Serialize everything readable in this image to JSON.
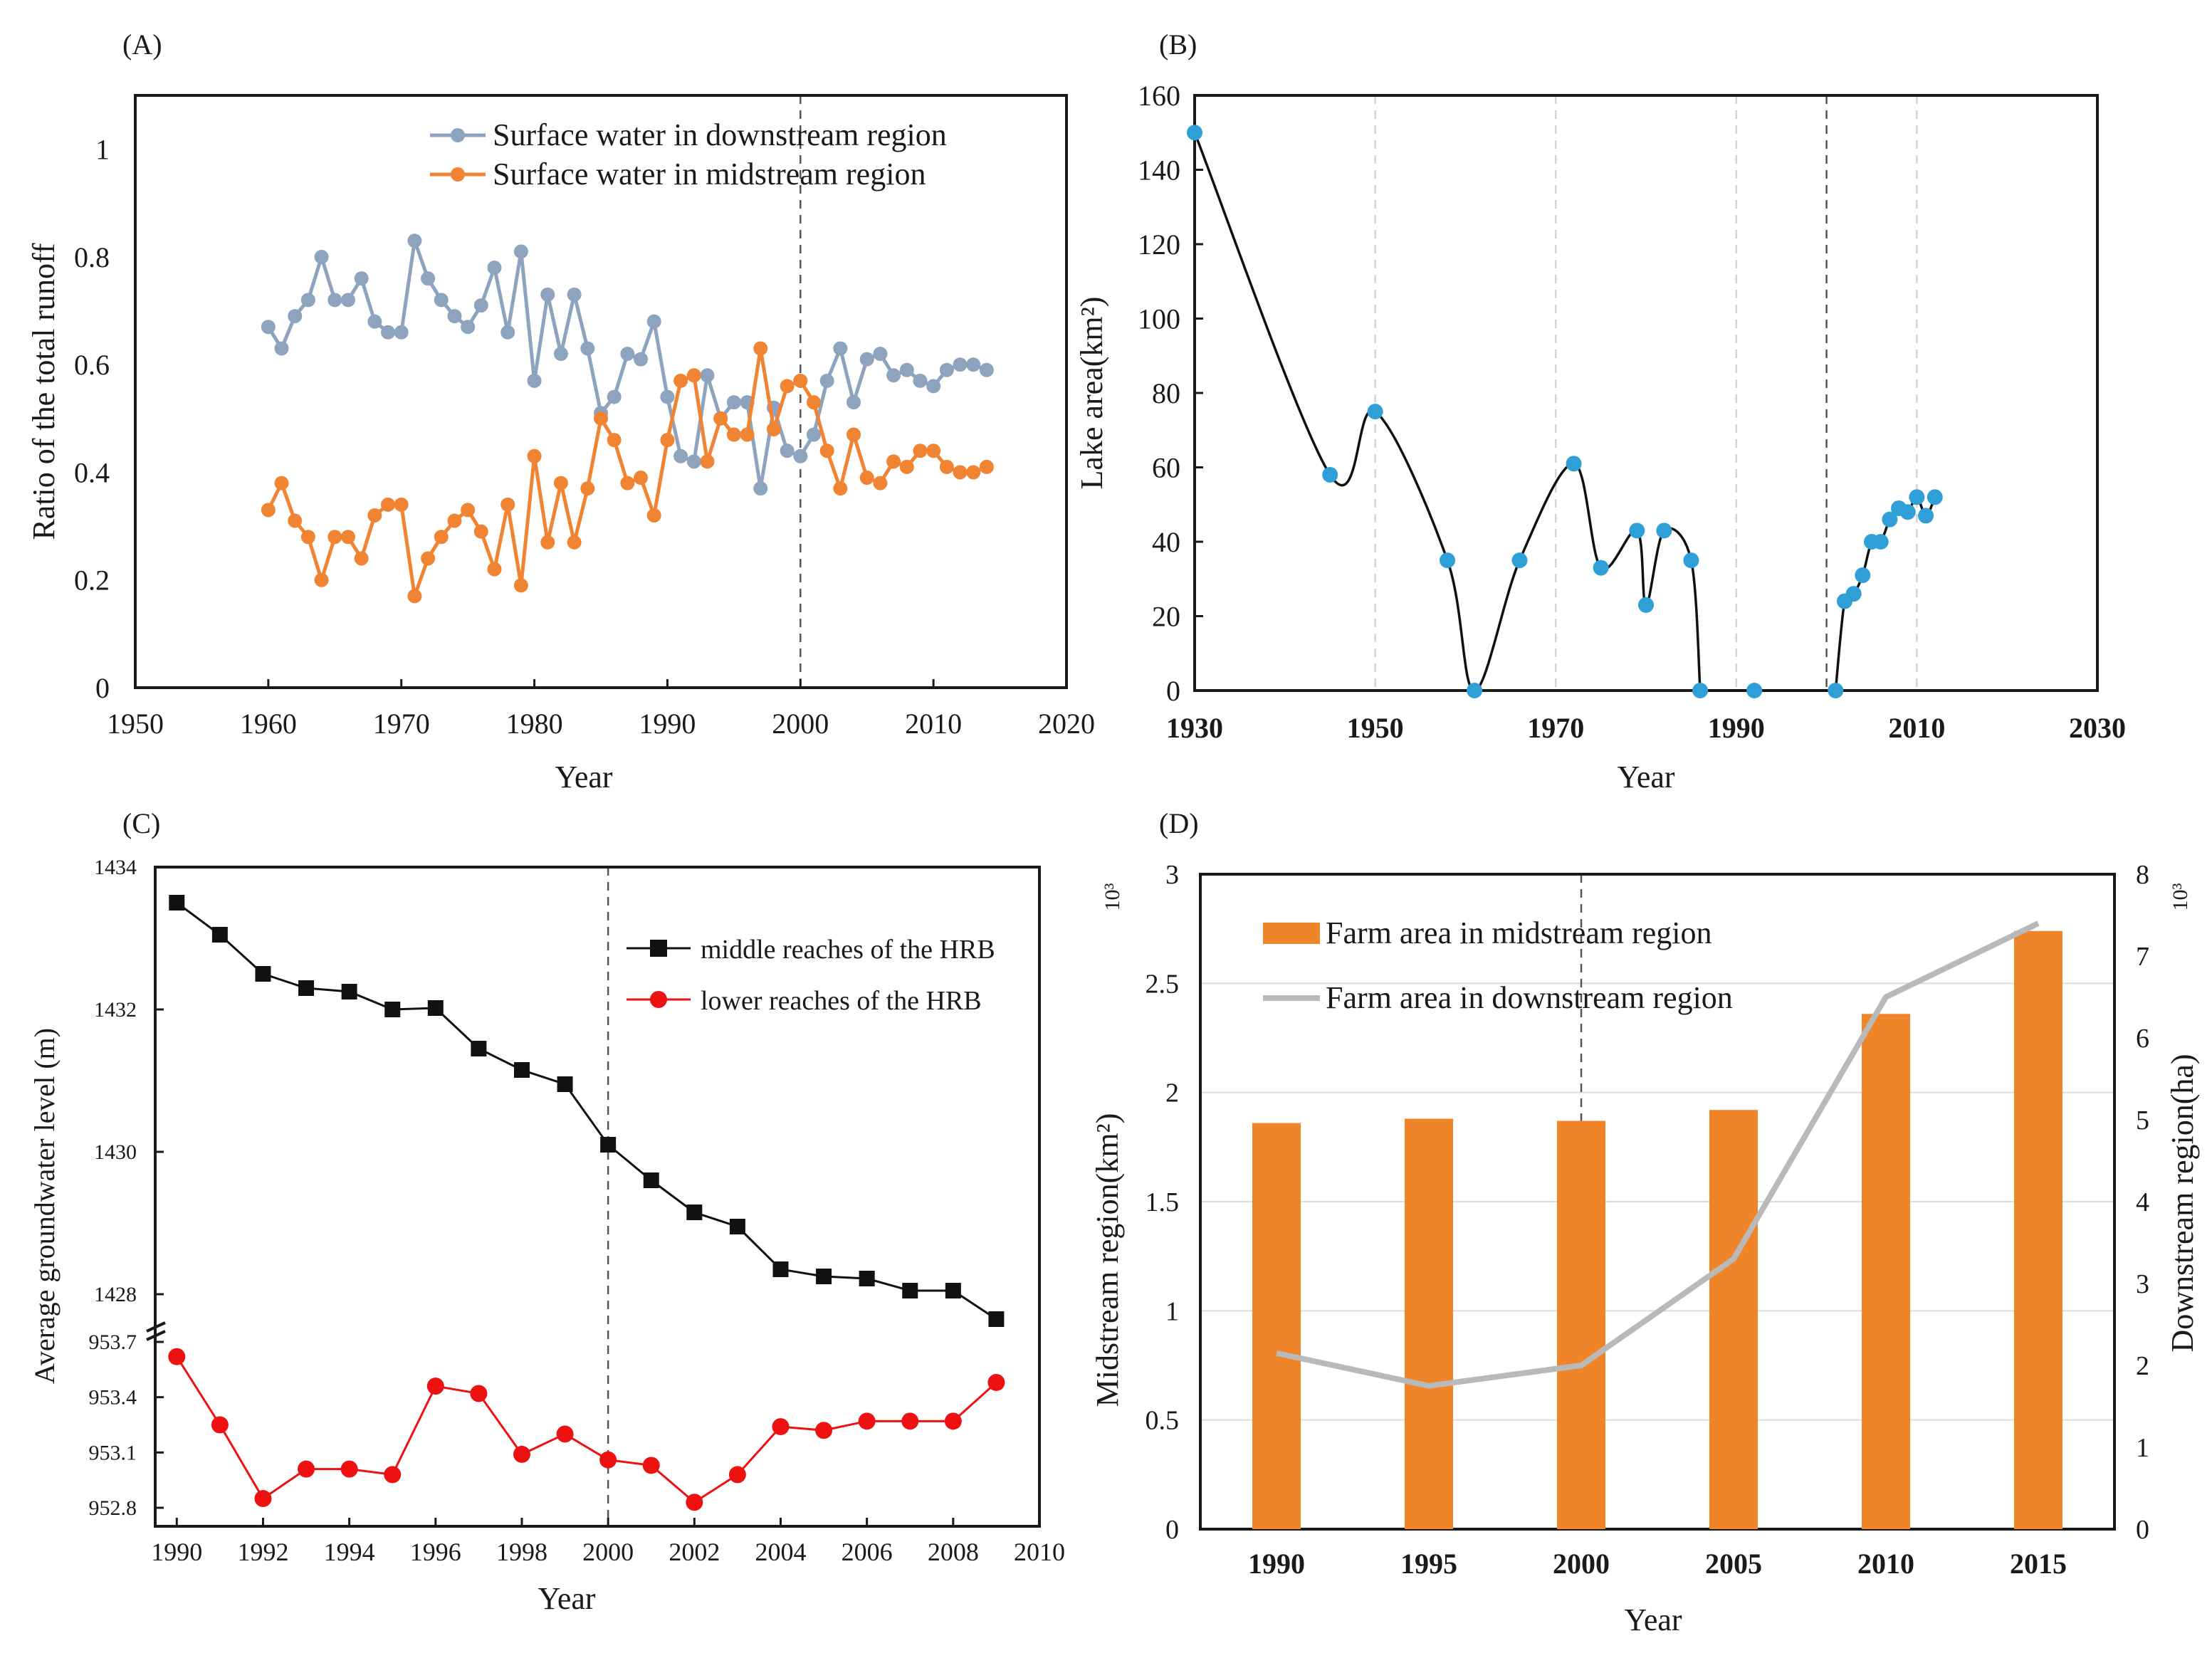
{
  "chart_data": [
    {
      "panel": "(A)",
      "type": "line",
      "xlabel": "Year",
      "ylabel": "Ratio of the total runoff",
      "xlim": [
        1950,
        2020
      ],
      "ylim": [
        0,
        1.1
      ],
      "xticks": [
        "1950",
        "1960",
        "1970",
        "1980",
        "1990",
        "2000",
        "2010",
        "2020"
      ],
      "yticks": [
        "0",
        "0.2",
        "0.4",
        "0.6",
        "0.8",
        "1"
      ],
      "vline_year": 2000,
      "legend_position": "top-right",
      "x": [
        1960,
        1961,
        1962,
        1963,
        1964,
        1965,
        1966,
        1967,
        1968,
        1969,
        1970,
        1971,
        1972,
        1973,
        1974,
        1975,
        1976,
        1977,
        1978,
        1979,
        1980,
        1981,
        1982,
        1983,
        1984,
        1985,
        1986,
        1987,
        1988,
        1989,
        1990,
        1991,
        1992,
        1993,
        1994,
        1995,
        1996,
        1997,
        1998,
        1999,
        2000,
        2001,
        2002,
        2003,
        2004,
        2005,
        2006,
        2007,
        2008,
        2009,
        2010,
        2011,
        2012,
        2013,
        2014
      ],
      "series": [
        {
          "name": "Surface water in downstream region",
          "color": "#8ea3bd",
          "values": [
            0.67,
            0.63,
            0.69,
            0.72,
            0.8,
            0.72,
            0.72,
            0.76,
            0.68,
            0.66,
            0.66,
            0.83,
            0.76,
            0.72,
            0.69,
            0.67,
            0.71,
            0.78,
            0.66,
            0.81,
            0.57,
            0.73,
            0.62,
            0.73,
            0.63,
            0.51,
            0.54,
            0.62,
            0.61,
            0.68,
            0.54,
            0.43,
            0.42,
            0.58,
            0.5,
            0.53,
            0.53,
            0.37,
            0.52,
            0.44,
            0.43,
            0.47,
            0.57,
            0.63,
            0.53,
            0.61,
            0.62,
            0.58,
            0.59,
            0.57,
            0.56,
            0.59,
            0.6,
            0.6,
            0.59
          ]
        },
        {
          "name": "Surface water in midstream region",
          "color": "#f08433",
          "values": [
            0.33,
            0.38,
            0.31,
            0.28,
            0.2,
            0.28,
            0.28,
            0.24,
            0.32,
            0.34,
            0.34,
            0.17,
            0.24,
            0.28,
            0.31,
            0.33,
            0.29,
            0.22,
            0.34,
            0.19,
            0.43,
            0.27,
            0.38,
            0.27,
            0.37,
            0.5,
            0.46,
            0.38,
            0.39,
            0.32,
            0.46,
            0.57,
            0.58,
            0.42,
            0.5,
            0.47,
            0.47,
            0.63,
            0.48,
            0.56,
            0.57,
            0.53,
            0.44,
            0.37,
            0.47,
            0.39,
            0.38,
            0.42,
            0.41,
            0.44,
            0.44,
            0.41,
            0.4,
            0.4,
            0.41
          ]
        }
      ]
    },
    {
      "panel": "(B)",
      "type": "line",
      "xlabel": "Year",
      "ylabel": "Lake area(km²)",
      "xlim": [
        1930,
        2030
      ],
      "ylim": [
        0,
        160
      ],
      "xticks": [
        "1930",
        "1950",
        "1970",
        "1990",
        "2010",
        "2030"
      ],
      "yticks": [
        "0",
        "20",
        "40",
        "60",
        "80",
        "100",
        "120",
        "140",
        "160"
      ],
      "vline_year": 2000,
      "grid_years": [
        1950,
        1970,
        1990,
        2010
      ],
      "series": [
        {
          "name": "Lake area",
          "color": "#2f9fd8",
          "x": [
            1930,
            1945,
            1950,
            1958,
            1961,
            1966,
            1972,
            1975,
            1979,
            1980,
            1982,
            1985,
            1986,
            1992,
            2001,
            2002,
            2003,
            2004,
            2005,
            2006,
            2007,
            2008,
            2009,
            2010,
            2011,
            2012
          ],
          "values": [
            150,
            58,
            75,
            35,
            0,
            35,
            61,
            33,
            43,
            23,
            43,
            35,
            0,
            0,
            0,
            24,
            26,
            31,
            40,
            40,
            46,
            49,
            48,
            52,
            47,
            52
          ]
        }
      ]
    },
    {
      "panel": "(C)",
      "type": "line",
      "xlabel": "Year",
      "ylabel": "Average groundwater level (m)",
      "xlim": [
        1989.5,
        2010
      ],
      "broken_axis": true,
      "upper_ylim": [
        1427.8,
        1434
      ],
      "lower_ylim": [
        952.75,
        953.7
      ],
      "xticks": [
        "1990",
        "1992",
        "1994",
        "1996",
        "1998",
        "2000",
        "2002",
        "2004",
        "2006",
        "2008",
        "2010"
      ],
      "upper_yticks": [
        "1428",
        "1430",
        "1432",
        "1434"
      ],
      "lower_yticks": [
        "952.8",
        "953.1",
        "953.4",
        "953.7"
      ],
      "vline_year": 2000,
      "legend_position": "right",
      "x": [
        1990,
        1991,
        1992,
        1993,
        1994,
        1995,
        1996,
        1997,
        1998,
        1999,
        2000,
        2001,
        2002,
        2003,
        2004,
        2005,
        2006,
        2007,
        2008,
        2009
      ],
      "series": [
        {
          "name": "middle reaches of the HRB",
          "color": "#111111",
          "marker": "square",
          "values": [
            1433.5,
            1433.05,
            1432.5,
            1432.3,
            1432.25,
            1432.0,
            1432.02,
            1431.45,
            1431.15,
            1430.95,
            1430.1,
            1429.6,
            1429.15,
            1428.95,
            1428.35,
            1428.25,
            1428.22,
            1428.05,
            1428.05,
            1427.65
          ]
        },
        {
          "name": "lower reaches of the HRB",
          "color": "#ee1111",
          "marker": "circle",
          "values": [
            953.62,
            953.25,
            952.85,
            953.01,
            953.01,
            952.98,
            953.46,
            953.42,
            953.09,
            953.2,
            953.06,
            953.03,
            952.83,
            952.98,
            953.24,
            953.22,
            953.27,
            953.27,
            953.27,
            953.48
          ]
        }
      ]
    },
    {
      "panel": "(D)",
      "type": "bar",
      "xlabel": "Year",
      "ylabel_left": "Midstream region(km²)",
      "ylabel_right": "Downstream region(ha)",
      "multiplier_left": "10³",
      "multiplier_right": "10³",
      "categories": [
        "1990",
        "1995",
        "2000",
        "2005",
        "2010",
        "2015"
      ],
      "ylim_left": [
        0,
        3
      ],
      "ylim_right": [
        0,
        8
      ],
      "yticks_left": [
        "0",
        "0.5",
        "1",
        "1.5",
        "2",
        "2.5",
        "3"
      ],
      "yticks_right": [
        "0",
        "1",
        "2",
        "3",
        "4",
        "5",
        "6",
        "7",
        "8"
      ],
      "vline_category": "2000",
      "legend_position": "top-left",
      "series": [
        {
          "name": "Farm area in midstream region",
          "color": "#f08429",
          "kind": "bar",
          "axis": "left",
          "values": [
            1.86,
            1.88,
            1.87,
            1.92,
            2.36,
            2.74
          ]
        },
        {
          "name": "Farm area in downstream region",
          "color": "#b9b9b9",
          "kind": "line",
          "axis": "right",
          "values": [
            2.15,
            1.75,
            2.0,
            3.3,
            6.5,
            7.4
          ]
        }
      ]
    }
  ]
}
